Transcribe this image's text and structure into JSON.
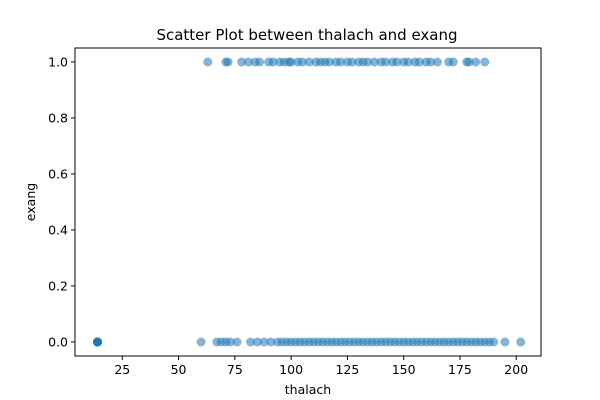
{
  "chart_data": {
    "type": "scatter",
    "title": "Scatter Plot between thalach and exang",
    "xlabel": "thalach",
    "ylabel": "exang",
    "xlim": [
      4,
      211
    ],
    "ylim": [
      -0.05,
      1.05
    ],
    "xticks": [
      25,
      50,
      75,
      100,
      125,
      150,
      175,
      200
    ],
    "yticks": [
      0.0,
      0.2,
      0.4,
      0.6,
      0.8,
      1.0
    ],
    "xtick_labels": [
      "25",
      "50",
      "75",
      "100",
      "125",
      "150",
      "175",
      "200"
    ],
    "ytick_labels": [
      "0.0",
      "0.2",
      "0.4",
      "0.6",
      "0.8",
      "1.0"
    ],
    "grid": false,
    "marker_color": "#1f77b4",
    "marker_alpha": 0.55,
    "series": [
      {
        "points": [
          [
            14,
            0
          ],
          [
            14,
            0
          ],
          [
            14,
            0
          ],
          [
            14,
            0
          ],
          [
            14,
            0
          ],
          [
            14,
            0
          ],
          [
            60,
            0
          ],
          [
            67,
            0
          ],
          [
            69,
            0
          ],
          [
            71,
            0
          ],
          [
            73,
            0
          ],
          [
            76,
            0
          ],
          [
            82,
            0
          ],
          [
            85,
            0
          ],
          [
            88,
            0
          ],
          [
            91,
            0
          ],
          [
            94,
            0
          ],
          [
            96,
            0
          ],
          [
            98,
            0
          ],
          [
            100,
            0
          ],
          [
            102,
            0
          ],
          [
            104,
            0
          ],
          [
            106,
            0
          ],
          [
            108,
            0
          ],
          [
            110,
            0
          ],
          [
            112,
            0
          ],
          [
            114,
            0
          ],
          [
            116,
            0
          ],
          [
            118,
            0
          ],
          [
            120,
            0
          ],
          [
            122,
            0
          ],
          [
            124,
            0
          ],
          [
            126,
            0
          ],
          [
            128,
            0
          ],
          [
            130,
            0
          ],
          [
            132,
            0
          ],
          [
            134,
            0
          ],
          [
            136,
            0
          ],
          [
            138,
            0
          ],
          [
            140,
            0
          ],
          [
            142,
            0
          ],
          [
            144,
            0
          ],
          [
            146,
            0
          ],
          [
            148,
            0
          ],
          [
            150,
            0
          ],
          [
            152,
            0
          ],
          [
            154,
            0
          ],
          [
            156,
            0
          ],
          [
            158,
            0
          ],
          [
            160,
            0
          ],
          [
            162,
            0
          ],
          [
            164,
            0
          ],
          [
            166,
            0
          ],
          [
            168,
            0
          ],
          [
            170,
            0
          ],
          [
            172,
            0
          ],
          [
            174,
            0
          ],
          [
            176,
            0
          ],
          [
            178,
            0
          ],
          [
            180,
            0
          ],
          [
            182,
            0
          ],
          [
            184,
            0
          ],
          [
            186,
            0
          ],
          [
            188,
            0
          ],
          [
            190,
            0
          ],
          [
            195,
            0
          ],
          [
            202,
            0
          ],
          [
            63,
            1
          ],
          [
            71,
            1
          ],
          [
            72,
            1
          ],
          [
            78,
            1
          ],
          [
            81,
            1
          ],
          [
            84,
            1
          ],
          [
            86,
            1
          ],
          [
            90,
            1
          ],
          [
            92,
            1
          ],
          [
            95,
            1
          ],
          [
            97,
            1
          ],
          [
            99,
            1
          ],
          [
            100,
            1
          ],
          [
            103,
            1
          ],
          [
            105,
            1
          ],
          [
            108,
            1
          ],
          [
            111,
            1
          ],
          [
            113,
            1
          ],
          [
            115,
            1
          ],
          [
            117,
            1
          ],
          [
            120,
            1
          ],
          [
            122,
            1
          ],
          [
            125,
            1
          ],
          [
            127,
            1
          ],
          [
            130,
            1
          ],
          [
            132,
            1
          ],
          [
            134,
            1
          ],
          [
            137,
            1
          ],
          [
            140,
            1
          ],
          [
            142,
            1
          ],
          [
            145,
            1
          ],
          [
            147,
            1
          ],
          [
            150,
            1
          ],
          [
            152,
            1
          ],
          [
            155,
            1
          ],
          [
            157,
            1
          ],
          [
            160,
            1
          ],
          [
            162,
            1
          ],
          [
            165,
            1
          ],
          [
            170,
            1
          ],
          [
            172,
            1
          ],
          [
            178,
            1
          ],
          [
            179,
            1
          ],
          [
            182,
            1
          ],
          [
            186,
            1
          ]
        ]
      }
    ]
  }
}
